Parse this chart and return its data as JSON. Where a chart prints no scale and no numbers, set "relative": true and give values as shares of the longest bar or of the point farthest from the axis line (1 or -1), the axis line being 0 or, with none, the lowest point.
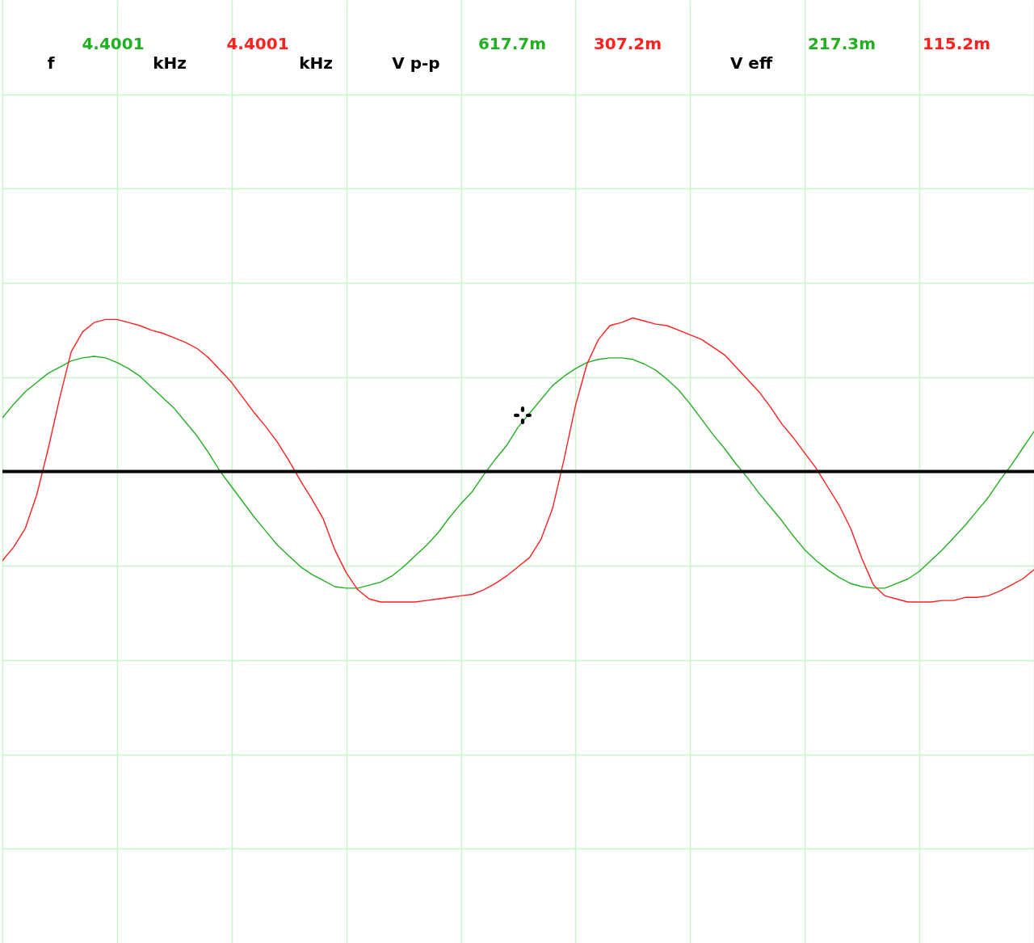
{
  "chart_data": {
    "type": "line",
    "relative": true,
    "grid": true,
    "categories": [
      null,
      null,
      null,
      null,
      null,
      null,
      null,
      null,
      null,
      null,
      null,
      null,
      null,
      null,
      null,
      null,
      null,
      null,
      null,
      null,
      null,
      null,
      null,
      null,
      null,
      null,
      null,
      null,
      null,
      null,
      null,
      null,
      null,
      null,
      null,
      null,
      null,
      null,
      null,
      null,
      null,
      null,
      null,
      null,
      null,
      null,
      null,
      null,
      null,
      null,
      null,
      null,
      null,
      null,
      null,
      null,
      null,
      null,
      null,
      null,
      null,
      null,
      null,
      null,
      null,
      null,
      null,
      null,
      null,
      null,
      null,
      null,
      null,
      null,
      null,
      null,
      null,
      null,
      null,
      null,
      null,
      null,
      null,
      null,
      null,
      null,
      null,
      null,
      null,
      null,
      null
    ],
    "series": [
      {
        "color": "#22b022",
        "values": [
          0.35,
          0.44,
          0.52,
          0.58,
          0.64,
          0.68,
          0.72,
          0.74,
          0.75,
          0.74,
          0.71,
          0.67,
          0.62,
          0.55,
          0.48,
          0.41,
          0.32,
          0.23,
          0.12,
          0.0,
          -0.1,
          -0.2,
          -0.3,
          -0.39,
          -0.48,
          -0.55,
          -0.62,
          -0.67,
          -0.71,
          -0.75,
          -0.76,
          -0.76,
          -0.74,
          -0.72,
          -0.68,
          -0.62,
          -0.55,
          -0.48,
          -0.4,
          -0.3,
          -0.21,
          -0.13,
          -0.02,
          0.08,
          0.17,
          0.29,
          0.38,
          0.47,
          0.56,
          0.62,
          0.67,
          0.71,
          0.73,
          0.74,
          0.74,
          0.73,
          0.7,
          0.66,
          0.6,
          0.53,
          0.44,
          0.34,
          0.24,
          0.15,
          0.05,
          -0.04,
          -0.14,
          -0.23,
          -0.32,
          -0.42,
          -0.51,
          -0.58,
          -0.64,
          -0.69,
          -0.73,
          -0.75,
          -0.76,
          -0.76,
          -0.73,
          -0.7,
          -0.65,
          -0.58,
          -0.51,
          -0.43,
          -0.35,
          -0.26,
          -0.17,
          -0.06,
          0.04,
          0.15,
          0.26
        ]
      },
      {
        "color": "#ff2020",
        "values": [
          -0.58,
          -0.49,
          -0.37,
          -0.15,
          0.15,
          0.48,
          0.78,
          0.91,
          0.97,
          0.99,
          0.99,
          0.97,
          0.95,
          0.92,
          0.9,
          0.87,
          0.84,
          0.8,
          0.74,
          0.66,
          0.58,
          0.48,
          0.38,
          0.29,
          0.19,
          0.07,
          -0.06,
          -0.18,
          -0.31,
          -0.51,
          -0.66,
          -0.77,
          -0.83,
          -0.85,
          -0.85,
          -0.85,
          -0.85,
          -0.84,
          -0.83,
          -0.82,
          -0.81,
          -0.8,
          -0.77,
          -0.73,
          -0.68,
          -0.62,
          -0.56,
          -0.44,
          -0.24,
          0.08,
          0.43,
          0.7,
          0.86,
          0.95,
          0.97,
          1.0,
          0.98,
          0.96,
          0.95,
          0.92,
          0.89,
          0.86,
          0.81,
          0.76,
          0.68,
          0.6,
          0.52,
          0.42,
          0.31,
          0.22,
          0.12,
          0.02,
          -0.1,
          -0.22,
          -0.37,
          -0.57,
          -0.74,
          -0.81,
          -0.83,
          -0.85,
          -0.85,
          -0.85,
          -0.84,
          -0.84,
          -0.82,
          -0.82,
          -0.81,
          -0.78,
          -0.74,
          -0.7,
          -0.64
        ]
      }
    ],
    "annotations": [
      "f",
      "4.4001",
      "kHz",
      "4.4001",
      "kHz",
      "V p-p",
      "617.7m",
      "307.2m",
      "V eff",
      "217.3m",
      "115.2m"
    ]
  }
}
